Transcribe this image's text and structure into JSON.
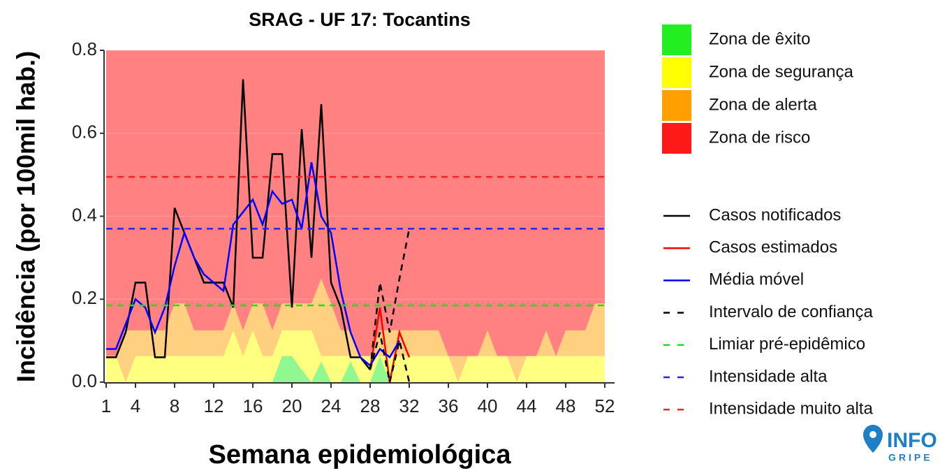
{
  "chart_data": {
    "type": "line",
    "title": "SRAG - UF 17: Tocantins",
    "x_label": "Semana epidemiológica",
    "y_label": "Incidência (por 100mil hab.)",
    "xlim": [
      1,
      52
    ],
    "ylim": [
      0,
      0.8
    ],
    "xticks": [
      1,
      4,
      8,
      12,
      16,
      20,
      24,
      28,
      32,
      36,
      40,
      44,
      48,
      52
    ],
    "yticks": [
      {
        "value": 0,
        "label": "0.0"
      },
      0.2,
      0.4,
      0.6,
      0.8
    ],
    "x": [
      1,
      2,
      3,
      4,
      5,
      6,
      7,
      8,
      9,
      10,
      11,
      12,
      13,
      14,
      15,
      16,
      17,
      18,
      19,
      20,
      21,
      22,
      23,
      24,
      25,
      26,
      27,
      28,
      29,
      30,
      31,
      32,
      33,
      34,
      35,
      36,
      37,
      38,
      39,
      40,
      41,
      42,
      43,
      44,
      45,
      46,
      47,
      48,
      49,
      50,
      51,
      52
    ],
    "zones": [
      {
        "name": "Zona de êxito",
        "color": "#22ee22",
        "values": [
          0,
          0,
          0,
          0,
          0,
          0,
          0,
          0,
          0,
          0,
          0,
          0,
          0,
          0,
          0,
          0,
          0,
          0,
          0.063,
          0.063,
          0.03,
          0,
          0.05,
          0,
          0,
          0.05,
          0,
          0,
          0.063,
          0,
          0,
          0,
          0,
          0,
          0,
          0,
          0,
          0,
          0,
          0,
          0,
          0,
          0,
          0,
          0,
          0,
          0,
          0,
          0,
          0,
          0,
          0
        ]
      },
      {
        "name": "Zona de segurança",
        "color": "#ffff00",
        "values": [
          0.063,
          0.063,
          0,
          0.063,
          0.063,
          0.063,
          0.063,
          0.063,
          0.063,
          0.063,
          0.063,
          0.063,
          0.063,
          0.125,
          0.063,
          0.125,
          0.063,
          0.063,
          0.125,
          0.125,
          0.125,
          0.125,
          0.063,
          0.063,
          0.063,
          0.063,
          0.063,
          0.063,
          0.063,
          0.063,
          0.063,
          0.063,
          0.063,
          0.063,
          0.063,
          0.063,
          0,
          0.063,
          0.063,
          0.063,
          0.063,
          0.063,
          0,
          0.063,
          0.063,
          0.063,
          0.063,
          0.063,
          0.063,
          0.063,
          0.063,
          0.063
        ]
      },
      {
        "name": "Zona de alerta",
        "color": "#ffa000",
        "values": [
          0.063,
          0.063,
          0.125,
          0.125,
          0.125,
          0.125,
          0.125,
          0.19,
          0.19,
          0.125,
          0.125,
          0.125,
          0.125,
          0.19,
          0.125,
          0.19,
          0.19,
          0.125,
          0.19,
          0.19,
          0.19,
          0.19,
          0.25,
          0.19,
          0.125,
          0.125,
          0.063,
          0.063,
          0.125,
          0.125,
          0.125,
          0.125,
          0.125,
          0.125,
          0.125,
          0.063,
          0.063,
          0.063,
          0.063,
          0.125,
          0.063,
          0.063,
          0.063,
          0.063,
          0.063,
          0.125,
          0.063,
          0.125,
          0.125,
          0.125,
          0.19,
          0.19
        ]
      },
      {
        "name": "Zona de risco",
        "color": "#ff1a1a"
      }
    ],
    "series": [
      {
        "name": "Casos notificados",
        "color": "#000000",
        "values": [
          0.06,
          0.06,
          0.12,
          0.24,
          0.24,
          0.06,
          0.06,
          0.42,
          0.36,
          0.3,
          0.24,
          0.24,
          0.24,
          0.18,
          0.73,
          0.3,
          0.3,
          0.55,
          0.55,
          0.18,
          0.61,
          0.3,
          0.67,
          0.24,
          0.18,
          0.06,
          0.06,
          0.03,
          null,
          null,
          null,
          null,
          null,
          null,
          null,
          null,
          null,
          null,
          null,
          null,
          null,
          null,
          null,
          null,
          null,
          null,
          null,
          null,
          null,
          null,
          null,
          null
        ]
      },
      {
        "name": "Casos estimados",
        "color": "#ff0000",
        "values": [
          null,
          null,
          null,
          null,
          null,
          null,
          null,
          null,
          null,
          null,
          null,
          null,
          null,
          null,
          null,
          null,
          null,
          null,
          null,
          null,
          null,
          null,
          null,
          null,
          null,
          null,
          null,
          0.03,
          0.18,
          0,
          0.12,
          0.06,
          null,
          null,
          null,
          null,
          null,
          null,
          null,
          null,
          null,
          null,
          null,
          null,
          null,
          null,
          null,
          null,
          null,
          null,
          null,
          null
        ]
      },
      {
        "name": "Média móvel",
        "color": "#0000ff",
        "values": [
          0.08,
          0.08,
          0.14,
          0.2,
          0.18,
          0.12,
          0.18,
          0.28,
          0.36,
          0.3,
          0.26,
          0.24,
          0.22,
          0.38,
          0.41,
          0.44,
          0.38,
          0.46,
          0.43,
          0.44,
          0.37,
          0.53,
          0.4,
          0.36,
          0.22,
          0.12,
          0.06,
          0.04,
          0.08,
          0.06,
          0.1,
          null,
          null,
          null,
          null,
          null,
          null,
          null,
          null,
          null,
          null,
          null,
          null,
          null,
          null,
          null,
          null,
          null,
          null,
          null,
          null,
          null
        ]
      },
      {
        "name": "Intervalo de confiança",
        "color": "#000000",
        "dash": true,
        "upper": [
          null,
          null,
          null,
          null,
          null,
          null,
          null,
          null,
          null,
          null,
          null,
          null,
          null,
          null,
          null,
          null,
          null,
          null,
          null,
          null,
          null,
          null,
          null,
          null,
          null,
          null,
          null,
          0.03,
          0.24,
          0.12,
          0.25,
          0.37,
          null,
          null,
          null,
          null,
          null,
          null,
          null,
          null,
          null,
          null,
          null,
          null,
          null,
          null,
          null,
          null,
          null,
          null,
          null,
          null
        ],
        "lower": [
          null,
          null,
          null,
          null,
          null,
          null,
          null,
          null,
          null,
          null,
          null,
          null,
          null,
          null,
          null,
          null,
          null,
          null,
          null,
          null,
          null,
          null,
          null,
          null,
          null,
          null,
          null,
          0.03,
          0.12,
          0,
          0.1,
          0,
          null,
          null,
          null,
          null,
          null,
          null,
          null,
          null,
          null,
          null,
          null,
          null,
          null,
          null,
          null,
          null,
          null,
          null,
          null,
          null
        ]
      },
      {
        "name": "Limiar pré-epidêmico",
        "color": "#22dd22",
        "dash": true,
        "value": 0.185
      },
      {
        "name": "Intensidade alta",
        "color": "#2222ff",
        "dash": true,
        "value": 0.37
      },
      {
        "name": "Intensidade muito alta",
        "color": "#ff2222",
        "dash": true,
        "value": 0.495
      }
    ],
    "logo": {
      "line1": "INFO",
      "line2": "GRIPE"
    }
  }
}
